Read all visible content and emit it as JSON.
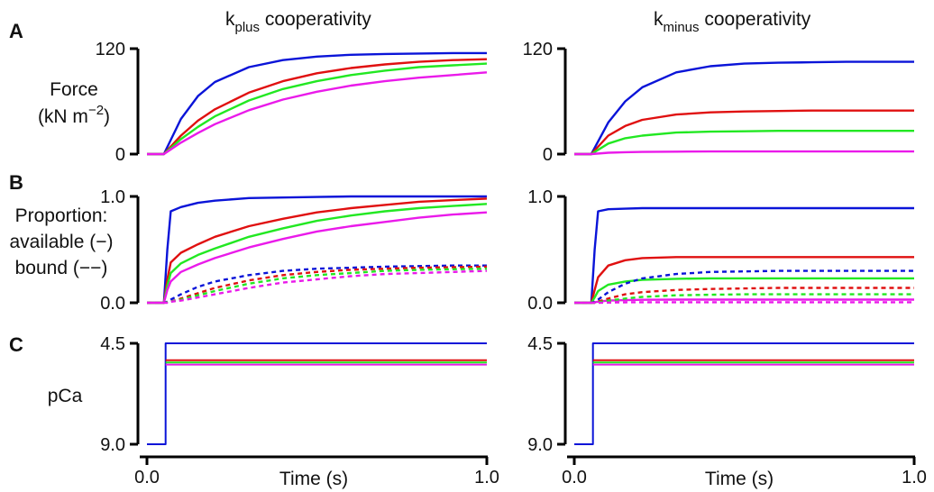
{
  "figure": {
    "panel_letters": [
      "A",
      "B",
      "C"
    ],
    "column_titles": [
      {
        "main": "k",
        "sub": "plus",
        "rest": " cooperativity"
      },
      {
        "main": "k",
        "sub": "minus",
        "rest": " cooperativity"
      }
    ],
    "row_labels": {
      "force": {
        "line1": "Force",
        "line2_main": "(kN m",
        "line2_sup": "−2",
        "line2_end": ")"
      },
      "proportion": {
        "line1": "Proportion:",
        "line2": "available (−)",
        "line3": "bound (−−)"
      },
      "pca": {
        "line1": "pCa"
      }
    },
    "x_axis": {
      "label": "Time (s)",
      "tick_labels": [
        "0.0",
        "1.0"
      ]
    }
  },
  "chart_data": [
    {
      "type": "line",
      "panel": "A",
      "column": "kplus cooperativity",
      "ylabel": "Force (kN m^-2)",
      "xlim": [
        0,
        1
      ],
      "ylim": [
        0,
        120
      ],
      "y_tick_labels": [
        "0",
        "120"
      ],
      "x": [
        0.0,
        0.05,
        0.1,
        0.15,
        0.2,
        0.3,
        0.4,
        0.5,
        0.6,
        0.7,
        0.8,
        0.9,
        1.0
      ],
      "series": [
        {
          "color": "#0a14d8",
          "style": "solid",
          "values": [
            0,
            0,
            40,
            66,
            82,
            99,
            107,
            111,
            113,
            114,
            114.5,
            115,
            115
          ]
        },
        {
          "color": "#e01010",
          "style": "solid",
          "values": [
            0,
            0,
            21,
            38,
            51,
            70,
            83,
            92,
            98,
            102,
            105,
            107,
            108
          ]
        },
        {
          "color": "#22e822",
          "style": "solid",
          "values": [
            0,
            0,
            17,
            31,
            43,
            61,
            74,
            83,
            90,
            95,
            99,
            101,
            103
          ]
        },
        {
          "color": "#ea1aea",
          "style": "solid",
          "values": [
            0,
            0,
            13,
            24,
            34,
            50,
            62,
            71,
            78,
            83,
            87,
            90,
            93
          ]
        }
      ]
    },
    {
      "type": "line",
      "panel": "A",
      "column": "kminus cooperativity",
      "ylabel": "Force (kN m^-2)",
      "xlim": [
        0,
        1
      ],
      "ylim": [
        0,
        120
      ],
      "y_tick_labels": [
        "0",
        "120"
      ],
      "x": [
        0.0,
        0.05,
        0.1,
        0.15,
        0.2,
        0.3,
        0.4,
        0.5,
        0.6,
        0.7,
        0.8,
        0.9,
        1.0
      ],
      "series": [
        {
          "color": "#0a14d8",
          "style": "solid",
          "values": [
            0,
            0,
            36,
            60,
            76,
            93,
            100,
            103,
            104,
            104.5,
            105,
            105,
            105
          ]
        },
        {
          "color": "#e01010",
          "style": "solid",
          "values": [
            0,
            0,
            21,
            32,
            39,
            45,
            47.5,
            48.5,
            49,
            49.5,
            49.5,
            49.5,
            49.5
          ]
        },
        {
          "color": "#22e822",
          "style": "solid",
          "values": [
            0,
            0,
            12,
            18,
            21,
            24.5,
            25.5,
            26,
            26.5,
            26.5,
            26.5,
            26.5,
            26.5
          ]
        },
        {
          "color": "#ea1aea",
          "style": "solid",
          "values": [
            0,
            0,
            1.5,
            2.2,
            2.5,
            2.8,
            3,
            3,
            3,
            3,
            3,
            3,
            3
          ]
        }
      ]
    },
    {
      "type": "line",
      "panel": "B",
      "column": "kplus cooperativity",
      "ylabel": "Proportion: available (solid), bound (dashed)",
      "xlim": [
        0,
        1
      ],
      "ylim": [
        0,
        1
      ],
      "y_tick_labels": [
        "0.0",
        "1.0"
      ],
      "x": [
        0.0,
        0.05,
        0.06,
        0.07,
        0.1,
        0.15,
        0.2,
        0.3,
        0.4,
        0.5,
        0.6,
        0.7,
        0.8,
        0.9,
        1.0
      ],
      "series": [
        {
          "color": "#0a14d8",
          "style": "solid",
          "values": [
            0,
            0,
            0.5,
            0.86,
            0.9,
            0.94,
            0.96,
            0.985,
            0.99,
            0.995,
            1.0,
            1.0,
            1.0,
            1.0,
            1.0
          ]
        },
        {
          "color": "#e01010",
          "style": "solid",
          "values": [
            0,
            0,
            0.22,
            0.38,
            0.47,
            0.55,
            0.62,
            0.72,
            0.79,
            0.85,
            0.89,
            0.92,
            0.95,
            0.965,
            0.98
          ]
        },
        {
          "color": "#22e822",
          "style": "solid",
          "values": [
            0,
            0,
            0.16,
            0.28,
            0.37,
            0.45,
            0.51,
            0.62,
            0.7,
            0.77,
            0.82,
            0.86,
            0.89,
            0.91,
            0.93
          ]
        },
        {
          "color": "#ea1aea",
          "style": "solid",
          "values": [
            0,
            0,
            0.12,
            0.2,
            0.29,
            0.36,
            0.42,
            0.52,
            0.6,
            0.67,
            0.72,
            0.76,
            0.8,
            0.83,
            0.85
          ]
        },
        {
          "color": "#0a14d8",
          "style": "dashed",
          "values": [
            0,
            0,
            0.01,
            0.03,
            0.08,
            0.15,
            0.2,
            0.26,
            0.3,
            0.32,
            0.33,
            0.34,
            0.345,
            0.35,
            0.35
          ]
        },
        {
          "color": "#e01010",
          "style": "dashed",
          "values": [
            0,
            0,
            0.005,
            0.01,
            0.04,
            0.09,
            0.14,
            0.21,
            0.26,
            0.29,
            0.31,
            0.32,
            0.33,
            0.335,
            0.34
          ]
        },
        {
          "color": "#22e822",
          "style": "dashed",
          "values": [
            0,
            0,
            0.005,
            0.01,
            0.03,
            0.07,
            0.11,
            0.18,
            0.23,
            0.26,
            0.28,
            0.3,
            0.31,
            0.315,
            0.32
          ]
        },
        {
          "color": "#ea1aea",
          "style": "dashed",
          "values": [
            0,
            0,
            0.0,
            0.01,
            0.02,
            0.05,
            0.08,
            0.14,
            0.19,
            0.22,
            0.25,
            0.27,
            0.28,
            0.29,
            0.3
          ]
        }
      ]
    },
    {
      "type": "line",
      "panel": "B",
      "column": "kminus cooperativity",
      "ylabel": "Proportion: available (solid), bound (dashed)",
      "xlim": [
        0,
        1
      ],
      "ylim": [
        0,
        1
      ],
      "y_tick_labels": [
        "0.0",
        "1.0"
      ],
      "x": [
        0.0,
        0.05,
        0.06,
        0.07,
        0.1,
        0.15,
        0.2,
        0.3,
        0.4,
        0.5,
        0.6,
        0.7,
        0.8,
        0.9,
        1.0
      ],
      "series": [
        {
          "color": "#0a14d8",
          "style": "solid",
          "values": [
            0,
            0,
            0.5,
            0.86,
            0.88,
            0.885,
            0.89,
            0.89,
            0.89,
            0.89,
            0.89,
            0.89,
            0.89,
            0.89,
            0.89
          ]
        },
        {
          "color": "#e01010",
          "style": "solid",
          "values": [
            0,
            0,
            0.12,
            0.24,
            0.35,
            0.4,
            0.42,
            0.43,
            0.43,
            0.43,
            0.43,
            0.43,
            0.43,
            0.43,
            0.43
          ]
        },
        {
          "color": "#22e822",
          "style": "solid",
          "values": [
            0,
            0,
            0.05,
            0.11,
            0.17,
            0.2,
            0.215,
            0.225,
            0.23,
            0.23,
            0.23,
            0.23,
            0.23,
            0.23,
            0.23
          ]
        },
        {
          "color": "#ea1aea",
          "style": "solid",
          "values": [
            0,
            0,
            0.005,
            0.01,
            0.02,
            0.025,
            0.028,
            0.03,
            0.03,
            0.03,
            0.03,
            0.03,
            0.03,
            0.03,
            0.03
          ]
        },
        {
          "color": "#0a14d8",
          "style": "dashed",
          "values": [
            0,
            0,
            0.01,
            0.03,
            0.1,
            0.18,
            0.23,
            0.27,
            0.29,
            0.295,
            0.3,
            0.3,
            0.3,
            0.3,
            0.3
          ]
        },
        {
          "color": "#e01010",
          "style": "dashed",
          "values": [
            0,
            0,
            0.0,
            0.01,
            0.04,
            0.08,
            0.1,
            0.12,
            0.13,
            0.135,
            0.14,
            0.14,
            0.14,
            0.14,
            0.14
          ]
        },
        {
          "color": "#22e822",
          "style": "dashed",
          "values": [
            0,
            0,
            0.0,
            0.005,
            0.02,
            0.04,
            0.055,
            0.07,
            0.075,
            0.08,
            0.08,
            0.08,
            0.08,
            0.08,
            0.08
          ]
        },
        {
          "color": "#ea1aea",
          "style": "dashed",
          "values": [
            0,
            0,
            0.0,
            0.0,
            0.002,
            0.004,
            0.005,
            0.005,
            0.005,
            0.005,
            0.005,
            0.005,
            0.005,
            0.005,
            0.005
          ]
        }
      ]
    },
    {
      "type": "line",
      "panel": "C",
      "column": "kplus cooperativity",
      "ylabel": "pCa",
      "xlim": [
        0,
        1
      ],
      "ylim": [
        9.0,
        4.5
      ],
      "inverted_y": true,
      "y_tick_labels": [
        "9.0",
        "4.5"
      ],
      "step_time": 0.055,
      "series": [
        {
          "color": "#0a14d8",
          "style": "solid",
          "before": 9.0,
          "after": 4.5
        },
        {
          "color": "#e01010",
          "style": "solid",
          "before": 9.0,
          "after": 5.25
        },
        {
          "color": "#22e822",
          "style": "solid",
          "before": 9.0,
          "after": 5.35
        },
        {
          "color": "#ea1aea",
          "style": "solid",
          "before": 9.0,
          "after": 5.45
        }
      ]
    },
    {
      "type": "line",
      "panel": "C",
      "column": "kminus cooperativity",
      "ylabel": "pCa",
      "xlim": [
        0,
        1
      ],
      "ylim": [
        9.0,
        4.5
      ],
      "inverted_y": true,
      "y_tick_labels": [
        "9.0",
        "4.5"
      ],
      "step_time": 0.055,
      "series": [
        {
          "color": "#0a14d8",
          "style": "solid",
          "before": 9.0,
          "after": 4.5
        },
        {
          "color": "#e01010",
          "style": "solid",
          "before": 9.0,
          "after": 5.25
        },
        {
          "color": "#22e822",
          "style": "solid",
          "before": 9.0,
          "after": 5.35
        },
        {
          "color": "#ea1aea",
          "style": "solid",
          "before": 9.0,
          "after": 5.45
        }
      ]
    }
  ]
}
